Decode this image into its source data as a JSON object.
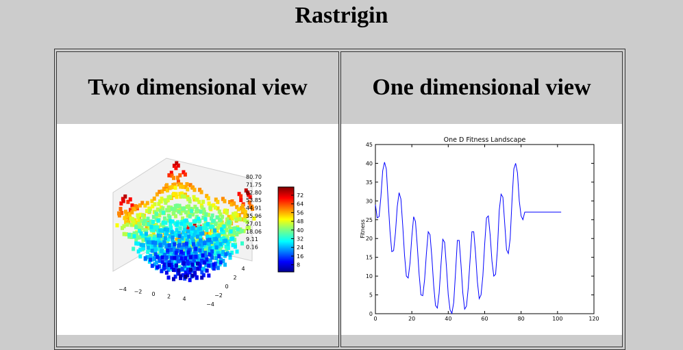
{
  "page": {
    "title": "Rastrigin"
  },
  "panels": {
    "two_d": {
      "heading": "Two dimensional view",
      "zaxis_ticks": [
        "80.70",
        "71.75",
        "62.80",
        "53.85",
        "44.91",
        "35.96",
        "27.01",
        "18.06",
        "9.11",
        "0.16"
      ],
      "colorbar_ticks": [
        "72",
        "64",
        "56",
        "48",
        "40",
        "32",
        "24",
        "16",
        "8"
      ],
      "x_ticks": [
        "−4",
        "−2",
        "0",
        "2",
        "4"
      ],
      "y_ticks": [
        "4",
        "2",
        "0",
        "−2",
        "−4"
      ]
    },
    "one_d": {
      "heading": "One dimensional view"
    }
  },
  "chart_data": {
    "type": "line",
    "title": "One D Fitness Landscape",
    "xlabel": "",
    "ylabel": "Fitness",
    "xlim": [
      0,
      120
    ],
    "ylim": [
      0,
      45
    ],
    "x_ticks": [
      0,
      20,
      40,
      60,
      80,
      100,
      120
    ],
    "y_ticks": [
      0,
      5,
      10,
      15,
      20,
      25,
      30,
      35,
      40,
      45
    ],
    "color": "#0000ff",
    "x": [
      0,
      1,
      2,
      3,
      4,
      5,
      6,
      7,
      8,
      9,
      10,
      11,
      12,
      13,
      14,
      15,
      16,
      17,
      18,
      19,
      20,
      21,
      22,
      23,
      24,
      25,
      26,
      27,
      28,
      29,
      30,
      31,
      32,
      33,
      34,
      35,
      36,
      37,
      38,
      39,
      40,
      41,
      42,
      43,
      44,
      45,
      46,
      47,
      48,
      49,
      50,
      51,
      52,
      53,
      54,
      55,
      56,
      57,
      58,
      59,
      60,
      61,
      62,
      63,
      64,
      65,
      66,
      67,
      68,
      69,
      70,
      71,
      72,
      73,
      74,
      75,
      76,
      77,
      78,
      79,
      80,
      81,
      82,
      83,
      84,
      85,
      86,
      87,
      88,
      89,
      90,
      91,
      92,
      93,
      94,
      95,
      96,
      97,
      98,
      99,
      100,
      101,
      102
    ],
    "values": [
      29.0,
      25.5,
      25.8,
      31.0,
      38.0,
      40.3,
      38.5,
      30.0,
      22.0,
      16.5,
      16.8,
      21.5,
      28.5,
      32.2,
      30.5,
      23.5,
      15.5,
      10.0,
      9.5,
      13.5,
      20.5,
      25.8,
      24.5,
      18.0,
      10.5,
      5.0,
      4.8,
      9.0,
      16.0,
      21.8,
      21.0,
      15.0,
      7.5,
      2.2,
      1.5,
      5.5,
      13.0,
      19.8,
      19.0,
      12.5,
      5.0,
      1.0,
      0.1,
      3.0,
      11.0,
      19.5,
      19.5,
      13.0,
      5.5,
      1.2,
      2.0,
      7.0,
      14.5,
      21.8,
      21.8,
      16.0,
      8.5,
      4.0,
      5.0,
      10.0,
      18.5,
      25.5,
      26.0,
      21.0,
      14.0,
      10.0,
      10.5,
      17.0,
      27.5,
      31.8,
      31.0,
      24.0,
      17.0,
      16.0,
      20.0,
      30.0,
      38.5,
      40.0,
      37.5,
      30.0,
      26.0,
      25.0,
      27.0,
      27.0,
      27.0,
      27.0,
      27.0,
      27.0,
      27.0,
      27.0,
      27.0,
      27.0,
      27.0,
      27.0,
      27.0,
      27.0,
      27.0,
      27.0,
      27.0,
      27.0,
      27.0,
      27.0,
      27.0
    ]
  }
}
